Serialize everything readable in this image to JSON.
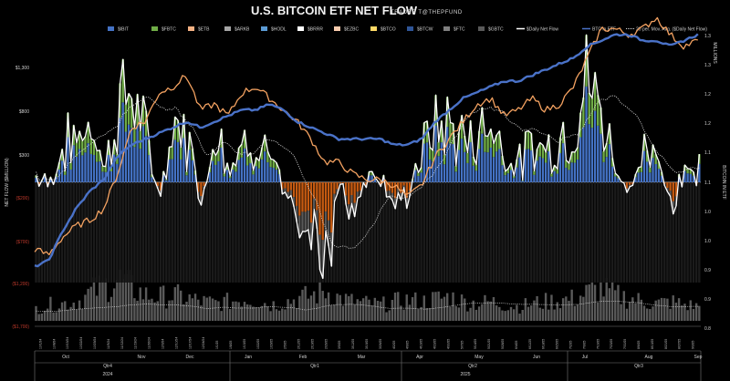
{
  "chart_data": {
    "type": "bar",
    "title": "U.S. BITCOIN ETF NET FLOW",
    "credit": "TRADER T@THEPFUND",
    "ylabel": "NET FLOW ($MILLION)",
    "y2label": "BITCOIN IN ETF",
    "y2unit": "MILLIONS",
    "ylim": [
      -1200,
      1300
    ],
    "y2lim": [
      0.8,
      1.3
    ],
    "y_ticks": [
      "$1,300",
      "$800",
      "$300",
      "($200)",
      "($700)",
      "($1,200)",
      "($1,700)"
    ],
    "y2_ticks": [
      "1.3",
      "1.3",
      "1.2",
      "1.2",
      "1.1",
      "1.1",
      "1.0",
      "1.0",
      "0.9",
      "0.9",
      "0.8"
    ],
    "legend": [
      {
        "label": "$IBIT",
        "color": "#4472c4",
        "kind": "bar"
      },
      {
        "label": "$FBTC",
        "color": "#70ad47",
        "kind": "bar"
      },
      {
        "label": "$ETB",
        "color": "#f4b183",
        "kind": "bar"
      },
      {
        "label": "$ARKB",
        "color": "#a5a5a5",
        "kind": "bar"
      },
      {
        "label": "$HODL",
        "color": "#5b9bd5",
        "kind": "bar"
      },
      {
        "label": "$BRRR",
        "color": "#ffffff",
        "kind": "bar"
      },
      {
        "label": "$EZBC",
        "color": "#f8cbad",
        "kind": "bar"
      },
      {
        "label": "$BTCO",
        "color": "#ffd966",
        "kind": "bar"
      },
      {
        "label": "$BTCW",
        "color": "#2f5597",
        "kind": "bar"
      },
      {
        "label": "$FTC",
        "color": "#7f7f7f",
        "kind": "bar"
      },
      {
        "label": "$GBTC",
        "color": "#595959",
        "kind": "bar"
      },
      {
        "label": "$Daily Net Flow",
        "color": "#ffffff",
        "kind": "line"
      },
      {
        "label": "BTC in ETF",
        "color": "#4a72c8",
        "kind": "line"
      },
      {
        "label": "20 per. Mov. Avg. ($Daily Net Flow)",
        "color": "#d8d8d8",
        "kind": "dotted"
      }
    ],
    "month_labels": [
      "Oct",
      "Nov",
      "Dec",
      "Jan",
      "Feb",
      "Mar",
      "Apr",
      "May",
      "Jun",
      "Jul",
      "Aug",
      "Sep"
    ],
    "quarter_labels": [
      "Qtr4",
      "Qtr1",
      "Qtr2",
      "Qtr3"
    ],
    "year_labels": [
      "2024",
      "2025"
    ],
    "x_dates": [
      "10/1/24",
      "10/8/24",
      "10/15/24",
      "10/22/24",
      "10/29/24",
      "11/5/24",
      "11/12/24",
      "11/19/24",
      "11/26/24",
      "12/3/24",
      "12/10/24",
      "12/17/24",
      "12/24/24",
      "1/1/25",
      "1/8/25",
      "1/15/25",
      "1/22/25",
      "1/29/25",
      "2/5/25",
      "2/12/25",
      "2/19/25",
      "2/26/25",
      "3/5/25",
      "3/12/25",
      "3/19/25",
      "3/26/25",
      "4/2/25",
      "4/9/25",
      "4/16/25",
      "4/23/25",
      "4/30/25",
      "5/7/25",
      "5/14/25",
      "5/21/25",
      "5/28/25",
      "6/4/25",
      "6/11/25",
      "6/18/25",
      "6/25/25",
      "7/2/25",
      "7/9/25",
      "7/16/25",
      "7/23/25",
      "7/30/25",
      "8/6/25",
      "8/13/25",
      "8/20/25",
      "8/27/25",
      "9/3/25"
    ],
    "net_flow_weekly": [
      60,
      -40,
      380,
      460,
      700,
      150,
      820,
      980,
      420,
      -180,
      650,
      470,
      -300,
      700,
      180,
      400,
      520,
      280,
      -150,
      -370,
      -540,
      -850,
      -120,
      -280,
      120,
      80,
      -220,
      -180,
      380,
      590,
      610,
      430,
      520,
      640,
      300,
      200,
      420,
      360,
      480,
      700,
      1100,
      690,
      170,
      -120,
      280,
      210,
      -330,
      130,
      160
    ],
    "btc_in_etf_weekly": [
      0.9,
      0.91,
      0.96,
      1.0,
      1.03,
      1.05,
      1.09,
      1.11,
      1.12,
      1.13,
      1.14,
      1.15,
      1.14,
      1.15,
      1.16,
      1.17,
      1.17,
      1.18,
      1.17,
      1.15,
      1.14,
      1.13,
      1.12,
      1.12,
      1.12,
      1.12,
      1.11,
      1.11,
      1.12,
      1.15,
      1.17,
      1.19,
      1.2,
      1.21,
      1.22,
      1.22,
      1.23,
      1.24,
      1.25,
      1.26,
      1.28,
      1.29,
      1.3,
      1.3,
      1.29,
      1.29,
      1.28,
      1.29,
      1.3
    ],
    "btc_price_weekly": [
      0.93,
      0.92,
      0.95,
      0.97,
      0.98,
      1.0,
      1.06,
      1.14,
      1.15,
      1.2,
      1.21,
      1.23,
      1.17,
      1.18,
      1.16,
      1.2,
      1.21,
      1.19,
      1.17,
      1.15,
      1.12,
      1.08,
      1.08,
      1.06,
      1.05,
      1.05,
      1.04,
      1.02,
      1.04,
      1.09,
      1.12,
      1.15,
      1.18,
      1.19,
      1.16,
      1.17,
      1.19,
      1.17,
      1.18,
      1.21,
      1.26,
      1.31,
      1.31,
      1.3,
      1.31,
      1.33,
      1.3,
      1.28,
      1.29
    ],
    "volume_weekly": [
      40,
      50,
      55,
      60,
      90,
      110,
      130,
      100,
      80,
      75,
      80,
      70,
      60,
      55,
      60,
      70,
      65,
      50,
      60,
      70,
      80,
      95,
      70,
      60,
      55,
      50,
      60,
      65,
      60,
      70,
      75,
      60,
      55,
      60,
      50,
      45,
      55,
      60,
      65,
      70,
      90,
      100,
      80,
      70,
      60,
      55,
      60,
      50,
      45
    ]
  }
}
